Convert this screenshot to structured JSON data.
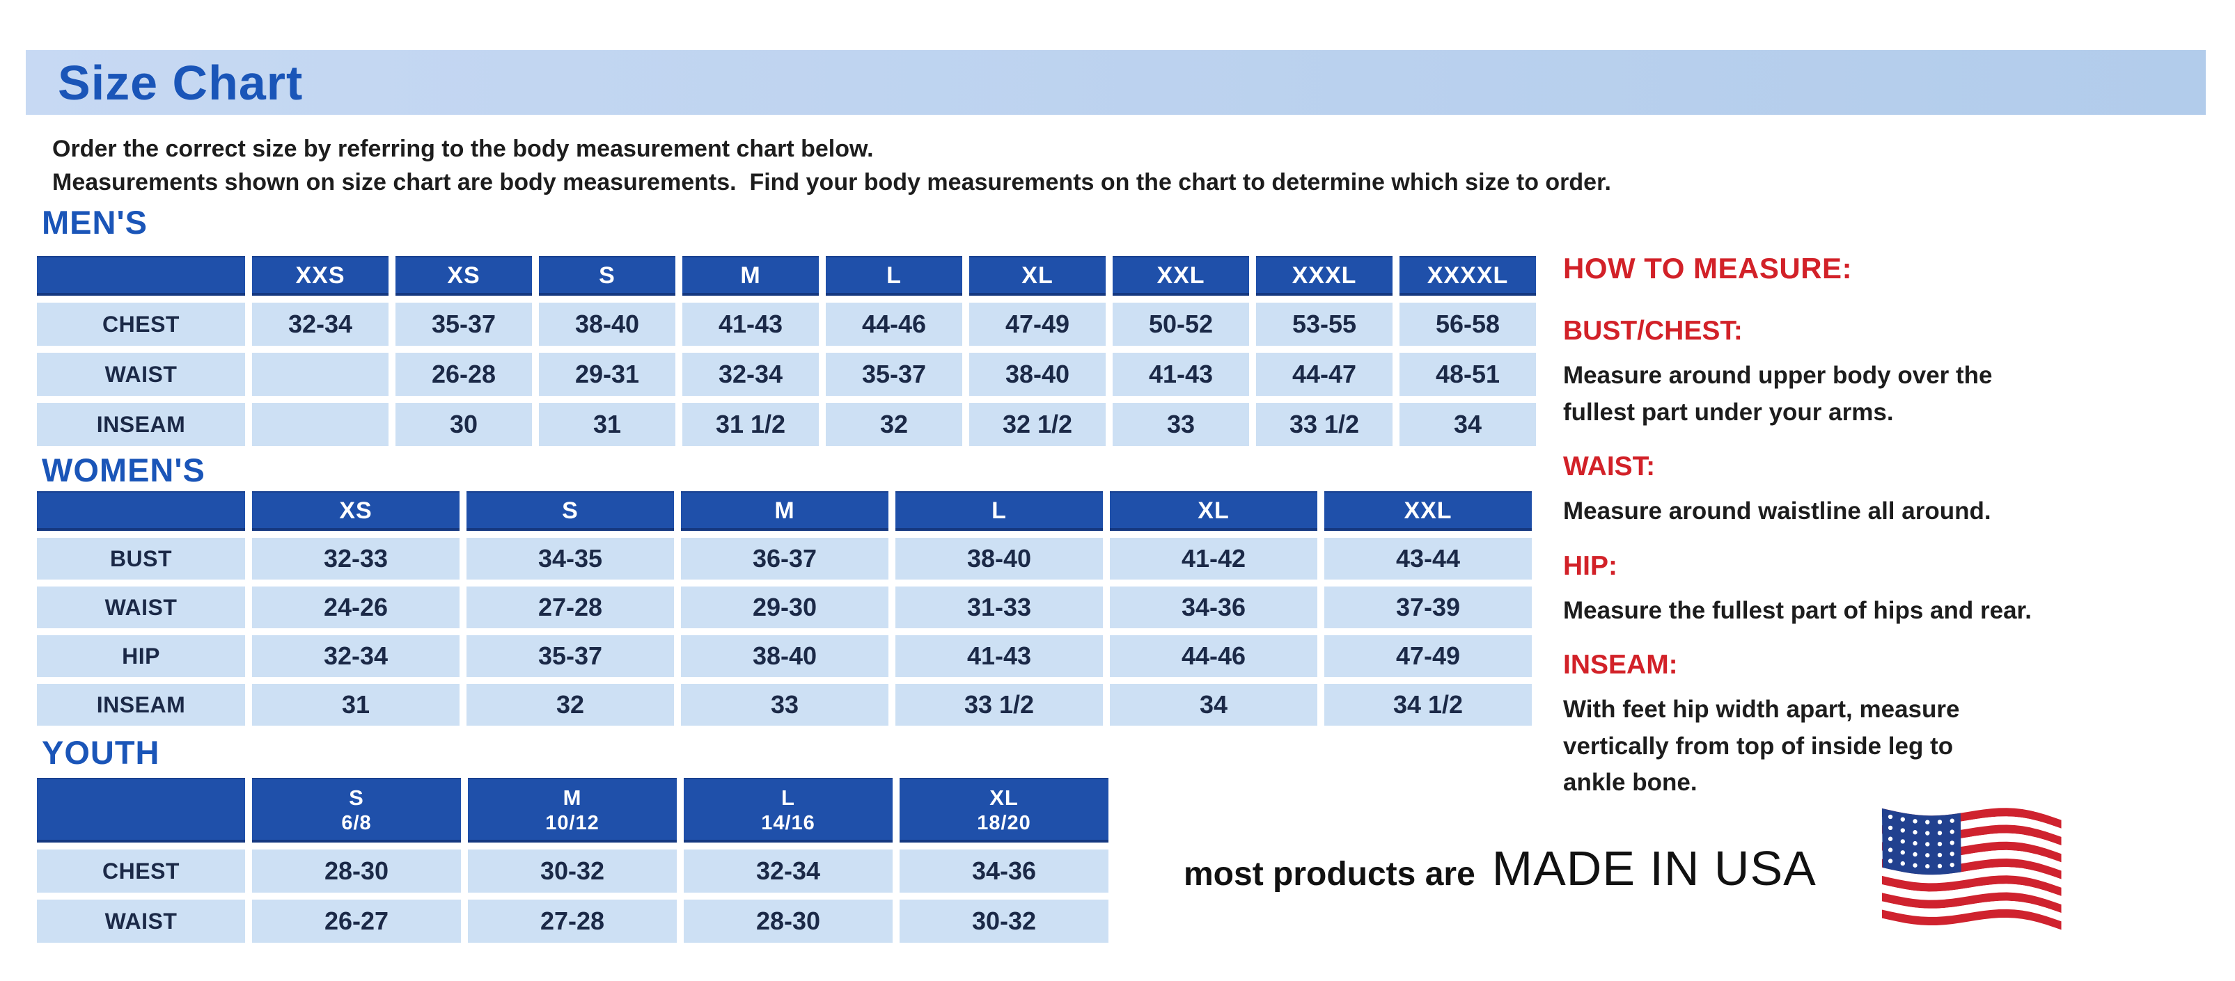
{
  "page": {
    "title": "Size Chart",
    "intro_line1": "Order the correct size by referring to the body measurement chart below.",
    "intro_line2": "Measurements shown on size chart are body measurements.  Find your body measurements on the chart to determine which size to order."
  },
  "tables": {
    "mens": {
      "heading": "MEN'S",
      "columns": [
        "XXS",
        "XS",
        "S",
        "M",
        "L",
        "XL",
        "XXL",
        "XXXL",
        "XXXXL"
      ],
      "rows": [
        {
          "label": "CHEST",
          "values": [
            "32-34",
            "35-37",
            "38-40",
            "41-43",
            "44-46",
            "47-49",
            "50-52",
            "53-55",
            "56-58"
          ]
        },
        {
          "label": "WAIST",
          "values": [
            "",
            "26-28",
            "29-31",
            "32-34",
            "35-37",
            "38-40",
            "41-43",
            "44-47",
            "48-51"
          ]
        },
        {
          "label": "INSEAM",
          "values": [
            "",
            "30",
            "31",
            "31 1/2",
            "32",
            "32 1/2",
            "33",
            "33 1/2",
            "34"
          ]
        }
      ]
    },
    "womens": {
      "heading": "WOMEN'S",
      "columns": [
        "XS",
        "S",
        "M",
        "L",
        "XL",
        "XXL"
      ],
      "rows": [
        {
          "label": "BUST",
          "values": [
            "32-33",
            "34-35",
            "36-37",
            "38-40",
            "41-42",
            "43-44"
          ]
        },
        {
          "label": "WAIST",
          "values": [
            "24-26",
            "27-28",
            "29-30",
            "31-33",
            "34-36",
            "37-39"
          ]
        },
        {
          "label": "HIP",
          "values": [
            "32-34",
            "35-37",
            "38-40",
            "41-43",
            "44-46",
            "47-49"
          ]
        },
        {
          "label": "INSEAM",
          "values": [
            "31",
            "32",
            "33",
            "33 1/2",
            "34",
            "34 1/2"
          ]
        }
      ]
    },
    "youth": {
      "heading": "YOUTH",
      "columns": [
        {
          "size": "S",
          "range": "6/8"
        },
        {
          "size": "M",
          "range": "10/12"
        },
        {
          "size": "L",
          "range": "14/16"
        },
        {
          "size": "XL",
          "range": "18/20"
        }
      ],
      "rows": [
        {
          "label": "CHEST",
          "values": [
            "28-30",
            "30-32",
            "32-34",
            "34-36"
          ]
        },
        {
          "label": "WAIST",
          "values": [
            "26-27",
            "27-28",
            "28-30",
            "30-32"
          ]
        }
      ]
    }
  },
  "how_to_measure": {
    "heading": "HOW TO MEASURE:",
    "items": [
      {
        "term": "BUST/CHEST:",
        "lines": [
          "Measure around upper body over the",
          "fullest part under your arms."
        ]
      },
      {
        "term": "WAIST:",
        "lines": [
          "Measure around waistline all around."
        ]
      },
      {
        "term": "HIP:",
        "lines": [
          "Measure the fullest part of hips and rear."
        ]
      },
      {
        "term": "INSEAM:",
        "lines": [
          "With feet hip width apart, measure",
          "vertically from top of inside leg to",
          "ankle bone."
        ]
      }
    ]
  },
  "footer": {
    "prefix": "most products are",
    "emphasis": "MADE IN USA",
    "flag_icon": "us-flag-icon"
  },
  "colors": {
    "accent_blue": "#1a55b8",
    "banner_blue": "#c7d9f3",
    "banner_blue_2": "#b2cceb",
    "header_blue": "#1f50aa",
    "cell_blue": "#cde0f4",
    "navy_text": "#1b2947",
    "red": "#d22128",
    "text_dark": "#1d1d1d",
    "flag_red": "#cf222e",
    "flag_blue": "#22418f"
  }
}
